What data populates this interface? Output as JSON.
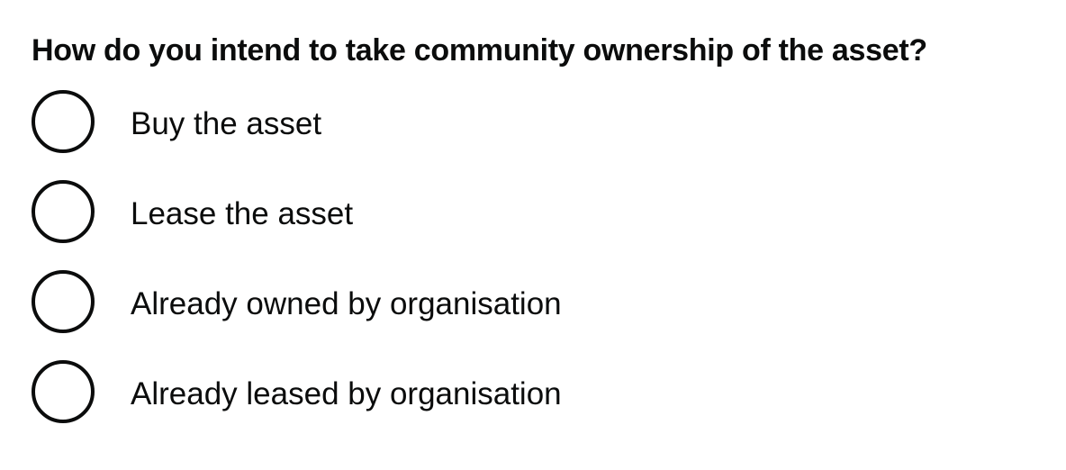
{
  "question": {
    "legend": "How do you intend to take community ownership of the asset?"
  },
  "options": [
    {
      "label": "Buy the asset",
      "checked": false
    },
    {
      "label": "Lease the asset",
      "checked": false
    },
    {
      "label": "Already owned by organisation",
      "checked": false
    },
    {
      "label": "Already leased by organisation",
      "checked": false
    }
  ],
  "colors": {
    "text": "#0b0c0c",
    "background": "#ffffff",
    "radio_border": "#0b0c0c"
  }
}
